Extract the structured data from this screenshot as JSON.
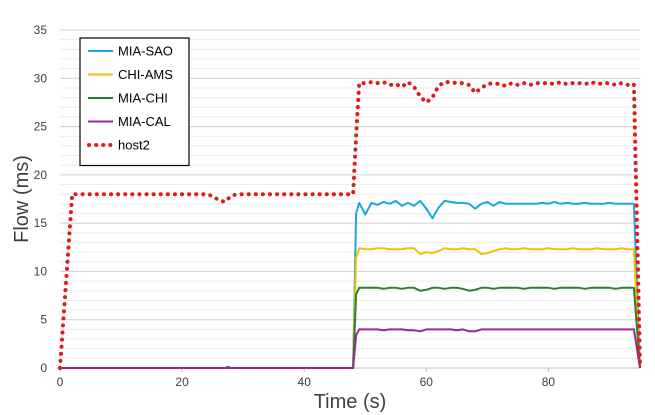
{
  "chart_data": {
    "type": "line",
    "title": "",
    "xlabel": "Time (s)",
    "ylabel": "Flow (ms)",
    "xlim": [
      0,
      95
    ],
    "ylim": [
      0,
      35
    ],
    "xticks": [
      0,
      20,
      40,
      60,
      80
    ],
    "yticks": [
      0,
      5,
      10,
      15,
      20,
      25,
      30,
      35
    ],
    "grid": "horizontal, major and minor",
    "legend_position": "top-left",
    "series": [
      {
        "name": "MIA-SAO",
        "color": "#1ea7dc",
        "style": "solid",
        "points": [
          [
            0,
            0
          ],
          [
            48,
            0
          ],
          [
            48.5,
            16
          ],
          [
            49,
            17.1
          ],
          [
            50,
            15.9
          ],
          [
            51,
            17.1
          ],
          [
            52,
            16.9
          ],
          [
            53,
            17.2
          ],
          [
            54,
            17
          ],
          [
            55,
            17.3
          ],
          [
            56,
            16.8
          ],
          [
            57,
            17.1
          ],
          [
            58,
            16.8
          ],
          [
            59,
            17.3
          ],
          [
            60,
            16.5
          ],
          [
            61,
            15.5
          ],
          [
            62,
            16.6
          ],
          [
            63,
            17.3
          ],
          [
            64,
            17.2
          ],
          [
            65,
            17.1
          ],
          [
            66,
            17.1
          ],
          [
            67,
            17
          ],
          [
            68,
            16.5
          ],
          [
            69,
            17
          ],
          [
            70,
            17.2
          ],
          [
            71,
            16.8
          ],
          [
            72,
            17.2
          ],
          [
            73,
            17
          ],
          [
            74,
            17
          ],
          [
            75,
            17
          ],
          [
            76,
            17
          ],
          [
            77,
            17
          ],
          [
            78,
            17
          ],
          [
            79,
            17.1
          ],
          [
            80,
            17
          ],
          [
            81,
            17.2
          ],
          [
            82,
            17
          ],
          [
            83,
            17.1
          ],
          [
            84,
            17
          ],
          [
            85,
            17
          ],
          [
            86,
            17.1
          ],
          [
            87,
            17
          ],
          [
            88,
            17
          ],
          [
            89,
            17
          ],
          [
            90,
            17.1
          ],
          [
            91,
            17
          ],
          [
            92,
            17
          ],
          [
            93,
            17
          ],
          [
            94,
            17
          ],
          [
            95,
            0
          ]
        ]
      },
      {
        "name": "CHI-AMS",
        "color": "#f5c000",
        "style": "solid",
        "points": [
          [
            0,
            0
          ],
          [
            48,
            0
          ],
          [
            48.5,
            11.4
          ],
          [
            49,
            12.4
          ],
          [
            50,
            12.3
          ],
          [
            51,
            12.3
          ],
          [
            52,
            12.4
          ],
          [
            53,
            12.4
          ],
          [
            54,
            12.3
          ],
          [
            55,
            12.3
          ],
          [
            56,
            12.3
          ],
          [
            57,
            12.4
          ],
          [
            58,
            12.4
          ],
          [
            59,
            11.8
          ],
          [
            60,
            12
          ],
          [
            61,
            11.9
          ],
          [
            62,
            12.1
          ],
          [
            63,
            12.4
          ],
          [
            64,
            12.3
          ],
          [
            65,
            12.3
          ],
          [
            66,
            12.4
          ],
          [
            67,
            12.3
          ],
          [
            68,
            12.3
          ],
          [
            69,
            11.8
          ],
          [
            70,
            11.9
          ],
          [
            71,
            12.1
          ],
          [
            72,
            12.3
          ],
          [
            73,
            12.4
          ],
          [
            74,
            12.3
          ],
          [
            75,
            12.3
          ],
          [
            76,
            12.4
          ],
          [
            77,
            12.3
          ],
          [
            78,
            12.3
          ],
          [
            79,
            12.3
          ],
          [
            80,
            12.4
          ],
          [
            81,
            12.3
          ],
          [
            82,
            12.3
          ],
          [
            83,
            12.3
          ],
          [
            84,
            12.4
          ],
          [
            85,
            12.3
          ],
          [
            86,
            12.3
          ],
          [
            87,
            12.3
          ],
          [
            88,
            12.4
          ],
          [
            89,
            12.3
          ],
          [
            90,
            12.3
          ],
          [
            91,
            12.3
          ],
          [
            92,
            12.4
          ],
          [
            93,
            12.3
          ],
          [
            94,
            12.3
          ],
          [
            95,
            0
          ]
        ]
      },
      {
        "name": "MIA-CHI",
        "color": "#2e7d32",
        "style": "solid",
        "points": [
          [
            0,
            0
          ],
          [
            48,
            0
          ],
          [
            48.5,
            7.6
          ],
          [
            49,
            8.3
          ],
          [
            50,
            8.3
          ],
          [
            51,
            8.3
          ],
          [
            52,
            8.3
          ],
          [
            53,
            8.2
          ],
          [
            54,
            8.3
          ],
          [
            55,
            8.3
          ],
          [
            56,
            8.2
          ],
          [
            57,
            8.3
          ],
          [
            58,
            8.3
          ],
          [
            59,
            8
          ],
          [
            60,
            8.1
          ],
          [
            61,
            8.3
          ],
          [
            62,
            8.3
          ],
          [
            63,
            8.2
          ],
          [
            64,
            8.3
          ],
          [
            65,
            8.3
          ],
          [
            66,
            8.2
          ],
          [
            67,
            8
          ],
          [
            68,
            8.1
          ],
          [
            69,
            8.3
          ],
          [
            70,
            8.3
          ],
          [
            71,
            8.2
          ],
          [
            72,
            8.3
          ],
          [
            73,
            8.3
          ],
          [
            74,
            8.3
          ],
          [
            75,
            8.3
          ],
          [
            76,
            8.2
          ],
          [
            77,
            8.3
          ],
          [
            78,
            8.3
          ],
          [
            79,
            8.3
          ],
          [
            80,
            8.3
          ],
          [
            81,
            8.2
          ],
          [
            82,
            8.3
          ],
          [
            83,
            8.3
          ],
          [
            84,
            8.3
          ],
          [
            85,
            8.3
          ],
          [
            86,
            8.2
          ],
          [
            87,
            8.3
          ],
          [
            88,
            8.3
          ],
          [
            89,
            8.3
          ],
          [
            90,
            8.3
          ],
          [
            91,
            8.2
          ],
          [
            92,
            8.3
          ],
          [
            93,
            8.3
          ],
          [
            94,
            8.3
          ],
          [
            95,
            0
          ]
        ]
      },
      {
        "name": "MIA-CAL",
        "color": "#9c2790",
        "style": "solid",
        "points": [
          [
            0,
            0
          ],
          [
            27,
            0
          ],
          [
            27.5,
            0.1
          ],
          [
            28,
            0
          ],
          [
            48,
            0
          ],
          [
            48.5,
            3.4
          ],
          [
            49,
            4
          ],
          [
            50,
            4
          ],
          [
            51,
            4
          ],
          [
            52,
            4
          ],
          [
            53,
            3.9
          ],
          [
            54,
            4
          ],
          [
            55,
            4
          ],
          [
            56,
            4
          ],
          [
            57,
            3.9
          ],
          [
            58,
            3.9
          ],
          [
            59,
            3.8
          ],
          [
            60,
            4
          ],
          [
            61,
            4
          ],
          [
            62,
            4
          ],
          [
            63,
            4
          ],
          [
            64,
            4
          ],
          [
            65,
            3.9
          ],
          [
            66,
            4
          ],
          [
            67,
            3.8
          ],
          [
            68,
            3.8
          ],
          [
            69,
            4
          ],
          [
            70,
            4
          ],
          [
            71,
            4
          ],
          [
            72,
            4
          ],
          [
            73,
            4
          ],
          [
            74,
            4
          ],
          [
            75,
            4
          ],
          [
            76,
            4
          ],
          [
            77,
            4
          ],
          [
            78,
            4
          ],
          [
            79,
            4
          ],
          [
            80,
            4
          ],
          [
            81,
            4
          ],
          [
            82,
            4
          ],
          [
            83,
            4
          ],
          [
            84,
            4
          ],
          [
            85,
            4
          ],
          [
            86,
            4
          ],
          [
            87,
            4
          ],
          [
            88,
            4
          ],
          [
            89,
            4
          ],
          [
            90,
            4
          ],
          [
            91,
            4
          ],
          [
            92,
            4
          ],
          [
            93,
            4
          ],
          [
            94,
            4
          ],
          [
            95,
            0
          ]
        ]
      },
      {
        "name": "host2",
        "color": "#e01b1b",
        "style": "dotted",
        "points": [
          [
            0,
            0
          ],
          [
            2,
            18
          ],
          [
            5,
            18
          ],
          [
            10,
            18
          ],
          [
            15,
            18
          ],
          [
            20,
            18
          ],
          [
            22,
            18
          ],
          [
            23,
            18
          ],
          [
            24,
            18
          ],
          [
            25,
            17.8
          ],
          [
            26,
            17.4
          ],
          [
            27,
            17.2
          ],
          [
            28,
            17.8
          ],
          [
            29,
            18
          ],
          [
            35,
            18
          ],
          [
            40,
            18
          ],
          [
            45,
            18
          ],
          [
            47,
            18
          ],
          [
            48,
            18
          ],
          [
            48.5,
            24
          ],
          [
            49,
            29.5
          ],
          [
            50,
            29.5
          ],
          [
            51,
            29.6
          ],
          [
            52,
            29.5
          ],
          [
            53,
            29.6
          ],
          [
            54,
            29.3
          ],
          [
            55,
            29.4
          ],
          [
            56,
            29.1
          ],
          [
            57,
            29.6
          ],
          [
            58,
            29.1
          ],
          [
            59,
            28.1
          ],
          [
            60,
            27.5
          ],
          [
            61,
            28
          ],
          [
            62,
            29.2
          ],
          [
            63,
            29.6
          ],
          [
            64,
            29.6
          ],
          [
            65,
            29.5
          ],
          [
            66,
            29.5
          ],
          [
            67,
            29.3
          ],
          [
            68,
            28.5
          ],
          [
            69,
            29
          ],
          [
            70,
            29.4
          ],
          [
            71,
            29.5
          ],
          [
            72,
            29.4
          ],
          [
            73,
            29.2
          ],
          [
            74,
            29.5
          ],
          [
            75,
            29.3
          ],
          [
            76,
            29.5
          ],
          [
            77,
            29.3
          ],
          [
            78,
            29.5
          ],
          [
            79,
            29.5
          ],
          [
            80,
            29.5
          ],
          [
            81,
            29.4
          ],
          [
            82,
            29.6
          ],
          [
            83,
            29.4
          ],
          [
            84,
            29.5
          ],
          [
            85,
            29.5
          ],
          [
            86,
            29.4
          ],
          [
            87,
            29.6
          ],
          [
            88,
            29.4
          ],
          [
            89,
            29.5
          ],
          [
            90,
            29.5
          ],
          [
            91,
            29.3
          ],
          [
            92,
            29.5
          ],
          [
            93,
            29.3
          ],
          [
            94,
            29.4
          ],
          [
            95,
            0.5
          ]
        ]
      }
    ]
  }
}
